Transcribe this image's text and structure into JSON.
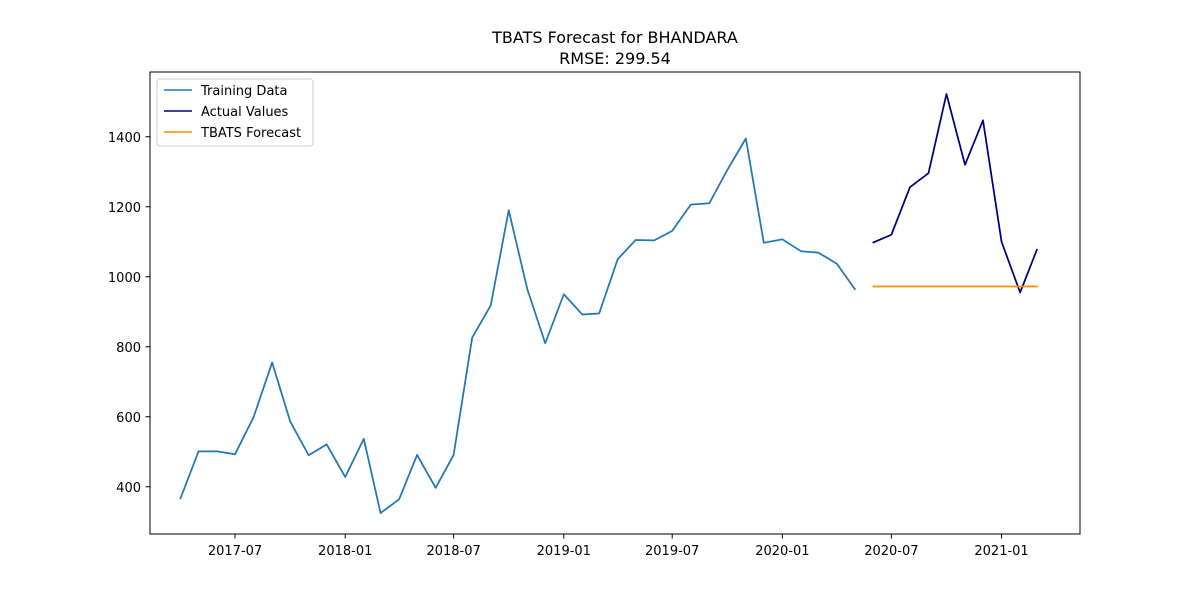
{
  "chart_data": {
    "type": "line",
    "title": "TBATS Forecast for BHANDARA",
    "subtitle": "RMSE: 299.54",
    "xlabel": "",
    "ylabel": "",
    "x_ticks": [
      "2017-07",
      "2018-01",
      "2018-07",
      "2019-01",
      "2019-07",
      "2020-01",
      "2020-07",
      "2021-01"
    ],
    "y_ticks": [
      400,
      600,
      800,
      1000,
      1200,
      1400
    ],
    "xlim": [
      "2017-02-09",
      "2021-05-12"
    ],
    "ylim": [
      265,
      1585
    ],
    "grid": false,
    "legend_position": "top-left",
    "series": [
      {
        "name": "Training Data",
        "color": "#1f77b4",
        "x": [
          "2017-04",
          "2017-05",
          "2017-06",
          "2017-07",
          "2017-08",
          "2017-09",
          "2017-10",
          "2017-11",
          "2017-12",
          "2018-01",
          "2018-02",
          "2018-03",
          "2018-04",
          "2018-05",
          "2018-06",
          "2018-07",
          "2018-08",
          "2018-09",
          "2018-10",
          "2018-11",
          "2018-12",
          "2019-01",
          "2019-02",
          "2019-03",
          "2019-04",
          "2019-05",
          "2019-06",
          "2019-07",
          "2019-08",
          "2019-09",
          "2019-10",
          "2019-11",
          "2019-12",
          "2020-01",
          "2020-02",
          "2020-03",
          "2020-04",
          "2020-05"
        ],
        "values": [
          367,
          501,
          501,
          493,
          599,
          755,
          587,
          490,
          521,
          428,
          537,
          325,
          364,
          491,
          397,
          491,
          826,
          918,
          1190,
          965,
          810,
          950,
          892,
          895,
          1050,
          1105,
          1104,
          1131,
          1206,
          1210,
          1305,
          1395,
          1097,
          1107,
          1073,
          1069,
          1037,
          965
        ]
      },
      {
        "name": "Actual Values",
        "color": "#000080",
        "x": [
          "2020-06",
          "2020-07",
          "2020-08",
          "2020-09",
          "2020-10",
          "2020-11",
          "2020-12",
          "2021-01",
          "2021-02",
          "2021-03"
        ],
        "values": [
          1098,
          1120,
          1256,
          1296,
          1522,
          1320,
          1447,
          1100,
          955,
          1077
        ]
      },
      {
        "name": "TBATS Forecast",
        "color": "#ff8c00",
        "x": [
          "2020-06",
          "2020-07",
          "2020-08",
          "2020-09",
          "2020-10",
          "2020-11",
          "2020-12",
          "2021-01",
          "2021-02",
          "2021-03"
        ],
        "values": [
          972,
          972,
          972,
          972,
          972,
          972,
          972,
          972,
          972,
          972
        ]
      }
    ]
  }
}
